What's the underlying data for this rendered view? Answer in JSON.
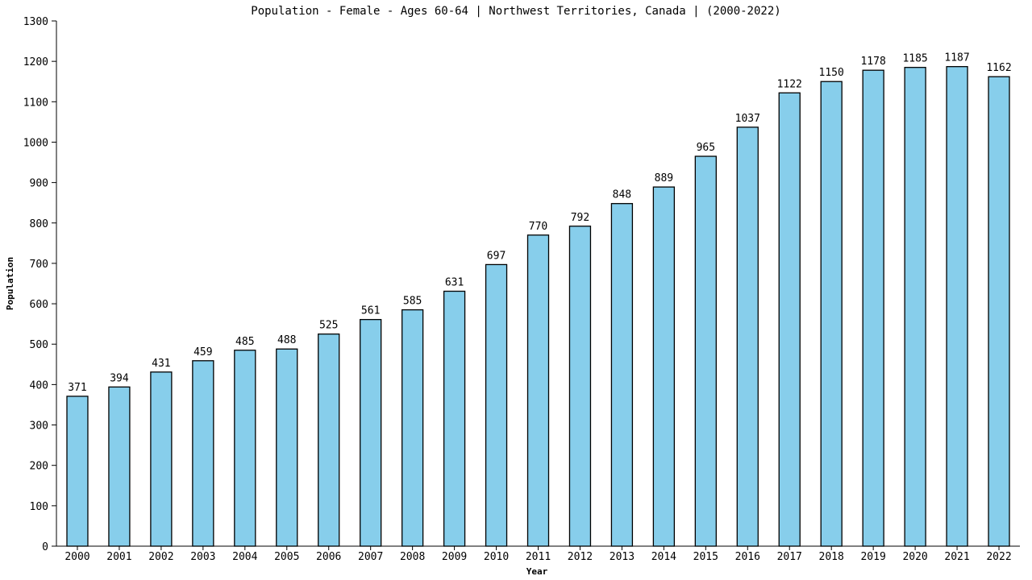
{
  "chart_data": {
    "type": "bar",
    "title": "Population - Female - Ages 60-64 | Northwest Territories, Canada |  (2000-2022)",
    "xlabel": "Year",
    "ylabel": "Population",
    "ylim": [
      0,
      1300
    ],
    "yticks": [
      0,
      100,
      200,
      300,
      400,
      500,
      600,
      700,
      800,
      900,
      1000,
      1100,
      1200,
      1300
    ],
    "grid": false,
    "bar_color": "#87ceeb",
    "categories": [
      "2000",
      "2001",
      "2002",
      "2003",
      "2004",
      "2005",
      "2006",
      "2007",
      "2008",
      "2009",
      "2010",
      "2011",
      "2012",
      "2013",
      "2014",
      "2015",
      "2016",
      "2017",
      "2018",
      "2019",
      "2020",
      "2021",
      "2022"
    ],
    "values": [
      371,
      394,
      431,
      459,
      485,
      488,
      525,
      561,
      585,
      631,
      697,
      770,
      792,
      848,
      889,
      965,
      1037,
      1122,
      1150,
      1178,
      1185,
      1187,
      1162
    ]
  }
}
